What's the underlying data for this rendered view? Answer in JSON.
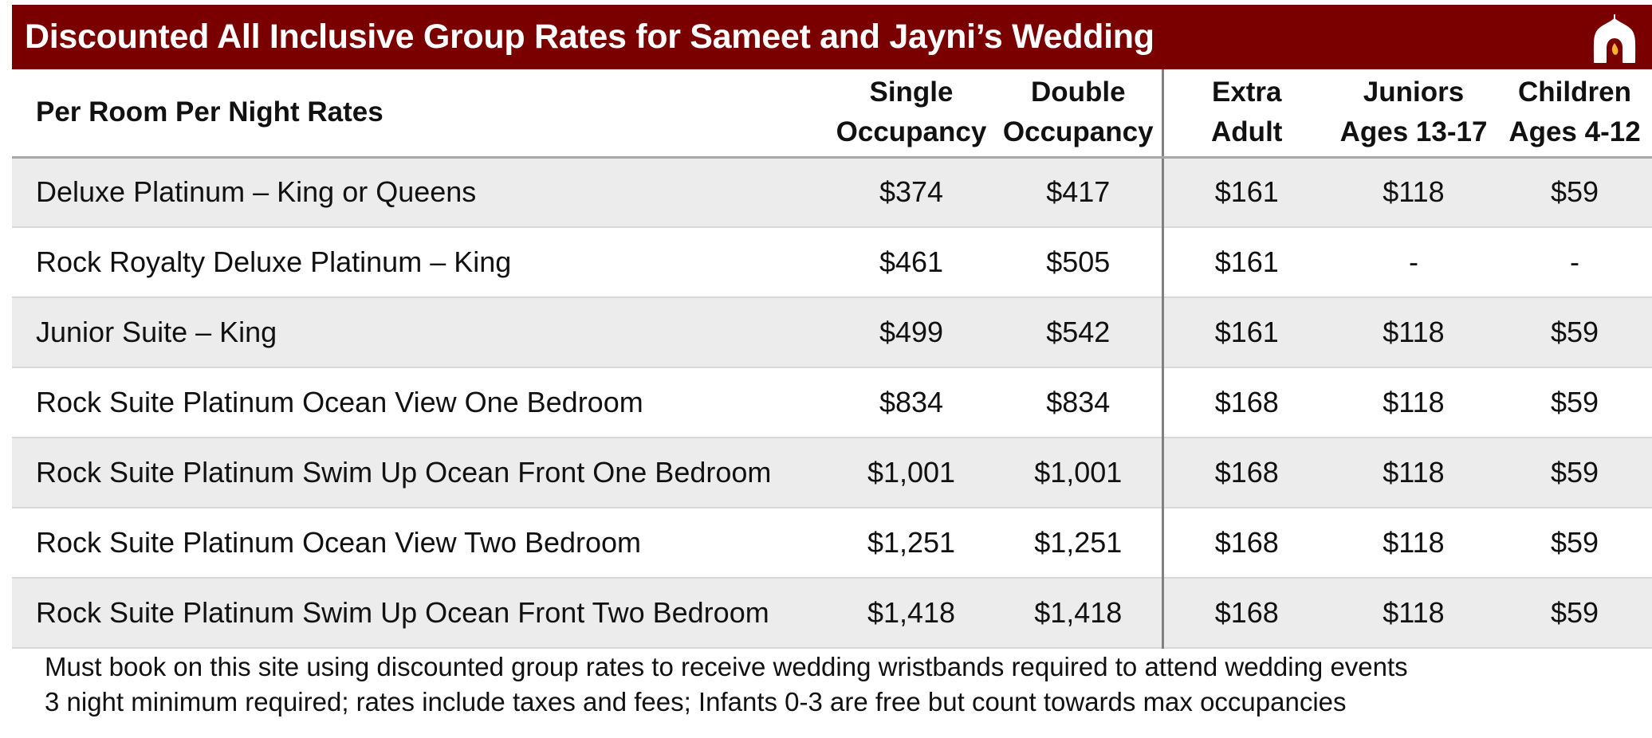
{
  "banner": {
    "title": "Discounted All Inclusive Group Rates for Sameet and Jayni’s Wedding",
    "background": "#7a0000",
    "logo_icon": "palace-arch-flame-icon"
  },
  "table": {
    "headers": {
      "room": "Per Room Per Night Rates",
      "single": [
        "Single",
        "Occupancy"
      ],
      "double": [
        "Double",
        "Occupancy"
      ],
      "extra_adult": [
        "Extra",
        "Adult"
      ],
      "juniors": [
        "Juniors",
        "Ages 13-17"
      ],
      "children": [
        "Children",
        "Ages 4-12"
      ]
    },
    "rows": [
      [
        "Deluxe Platinum – King or Queens",
        "$374",
        "$417",
        "$161",
        "$118",
        "$59"
      ],
      [
        "Rock Royalty Deluxe Platinum – King",
        "$461",
        "$505",
        "$161",
        "-",
        "-"
      ],
      [
        "Junior Suite – King",
        "$499",
        "$542",
        "$161",
        "$118",
        "$59"
      ],
      [
        "Rock Suite Platinum Ocean View One Bedroom",
        "$834",
        "$834",
        "$168",
        "$118",
        "$59"
      ],
      [
        "Rock Suite Platinum Swim Up Ocean Front One Bedroom",
        "$1,001",
        "$1,001",
        "$168",
        "$118",
        "$59"
      ],
      [
        "Rock Suite Platinum Ocean View Two Bedroom",
        "$1,251",
        "$1,251",
        "$168",
        "$118",
        "$59"
      ],
      [
        "Rock Suite Platinum Swim Up Ocean Front Two Bedroom",
        "$1,418",
        "$1,418",
        "$168",
        "$118",
        "$59"
      ]
    ],
    "row_shade": "#ececec"
  },
  "notes": [
    "Must book on this site using discounted group rates to receive wedding wristbands required to attend wedding events",
    "3 night minimum required; rates include taxes and fees; Infants 0-3 are free but count towards max occupancies"
  ]
}
